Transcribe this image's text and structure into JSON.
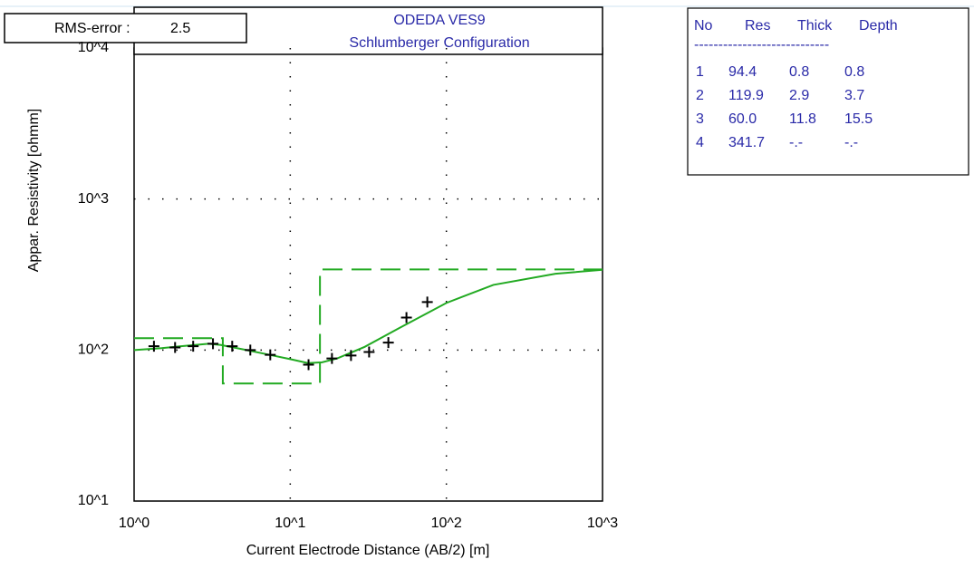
{
  "chart_data": {
    "type": "ves-sounding",
    "title": "ODEDA VES9",
    "subtitle": "Schlumberger Configuration",
    "rms_label": "RMS-error :",
    "rms_value": "2.5",
    "x_label": "Current Electrode Distance (AB/2) [m]",
    "y_label": "Appar. Resistivity [ohmm]",
    "log_x": true,
    "log_y": true,
    "grid": true,
    "color": "#22aa22",
    "xlim": [
      1,
      1000
    ],
    "ylim": [
      10,
      10000
    ],
    "xticks": [
      {
        "value": 1,
        "label": "10^0"
      },
      {
        "value": 10,
        "label": "10^1"
      },
      {
        "value": 100,
        "label": "10^2"
      },
      {
        "value": 1000,
        "label": "10^3"
      }
    ],
    "yticks": [
      {
        "value": 10,
        "label": "10^1"
      },
      {
        "value": 100,
        "label": "10^2"
      },
      {
        "value": 1000,
        "label": "10^3"
      },
      {
        "value": 10000,
        "label": "10^4"
      }
    ],
    "observed": {
      "color": "#000000",
      "x": [
        1.34,
        1.83,
        2.39,
        3.2,
        4.25,
        5.55,
        7.45,
        13.1,
        18.5,
        24.5,
        32,
        42.5,
        55.5,
        75.5
      ],
      "values": [
        106,
        104,
        106,
        110,
        106,
        100,
        93,
        80,
        88,
        92,
        97,
        112,
        164,
        208
      ]
    },
    "model_curve": {
      "x": [
        1,
        1.5,
        2,
        3,
        3.6,
        5,
        7,
        10,
        13,
        16,
        20,
        30,
        50,
        100,
        200,
        500,
        1000
      ],
      "values": [
        100,
        103,
        106,
        110,
        108,
        101,
        94,
        87,
        82,
        83,
        88,
        105,
        140,
        205,
        270,
        320,
        340
      ]
    },
    "layer_table": {
      "header": [
        "No",
        "Res",
        "Thick",
        "Depth"
      ],
      "separator": "----------------------------",
      "rows": [
        [
          "1",
          "94.4",
          "0.8",
          "0.8"
        ],
        [
          "2",
          "119.9",
          "2.9",
          "3.7"
        ],
        [
          "3",
          "60.0",
          "11.8",
          "15.5"
        ],
        [
          "4",
          "341.7",
          "-.-",
          "-.-"
        ]
      ]
    }
  }
}
